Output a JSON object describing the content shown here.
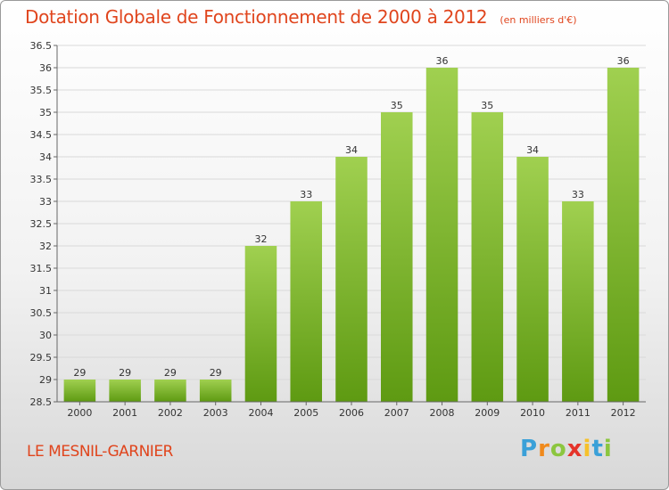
{
  "chart_data": {
    "type": "bar",
    "title": "Dotation Globale de Fonctionnement de 2000 à 2012",
    "unit_note": "(en milliers d'€)",
    "xlabel": "",
    "ylabel": "",
    "categories": [
      "2000",
      "2001",
      "2002",
      "2003",
      "2004",
      "2005",
      "2006",
      "2007",
      "2008",
      "2009",
      "2010",
      "2011",
      "2012"
    ],
    "values": [
      29,
      29,
      29,
      29,
      32,
      33,
      34,
      35,
      36,
      35,
      34,
      33,
      36
    ],
    "data_labels": [
      "29",
      "29",
      "29",
      "29",
      "32",
      "33",
      "34",
      "35",
      "36",
      "35",
      "34",
      "33",
      "36"
    ],
    "ylim": [
      28.5,
      36.5
    ],
    "yticks": [
      "28.5",
      "29",
      "29.5",
      "30",
      "30.5",
      "31",
      "31.5",
      "32",
      "32.5",
      "33",
      "33.5",
      "34",
      "34.5",
      "35",
      "35.5",
      "36",
      "36.5"
    ],
    "grid": true,
    "legend": "none",
    "colors": {
      "bar_top": "#a0d050",
      "bar_bottom": "#5e9a12",
      "accent": "#e0451d"
    }
  },
  "footer": {
    "location": "LE MESNIL-GARNIER",
    "brand_letters": [
      "P",
      "r",
      "o",
      "x",
      "i",
      "t",
      "i"
    ],
    "brand_colors": [
      "#3aa0d8",
      "#f08a1c",
      "#8cc63f",
      "#e5332a",
      "#f6c12b",
      "#3aa0d8",
      "#8cc63f"
    ]
  }
}
